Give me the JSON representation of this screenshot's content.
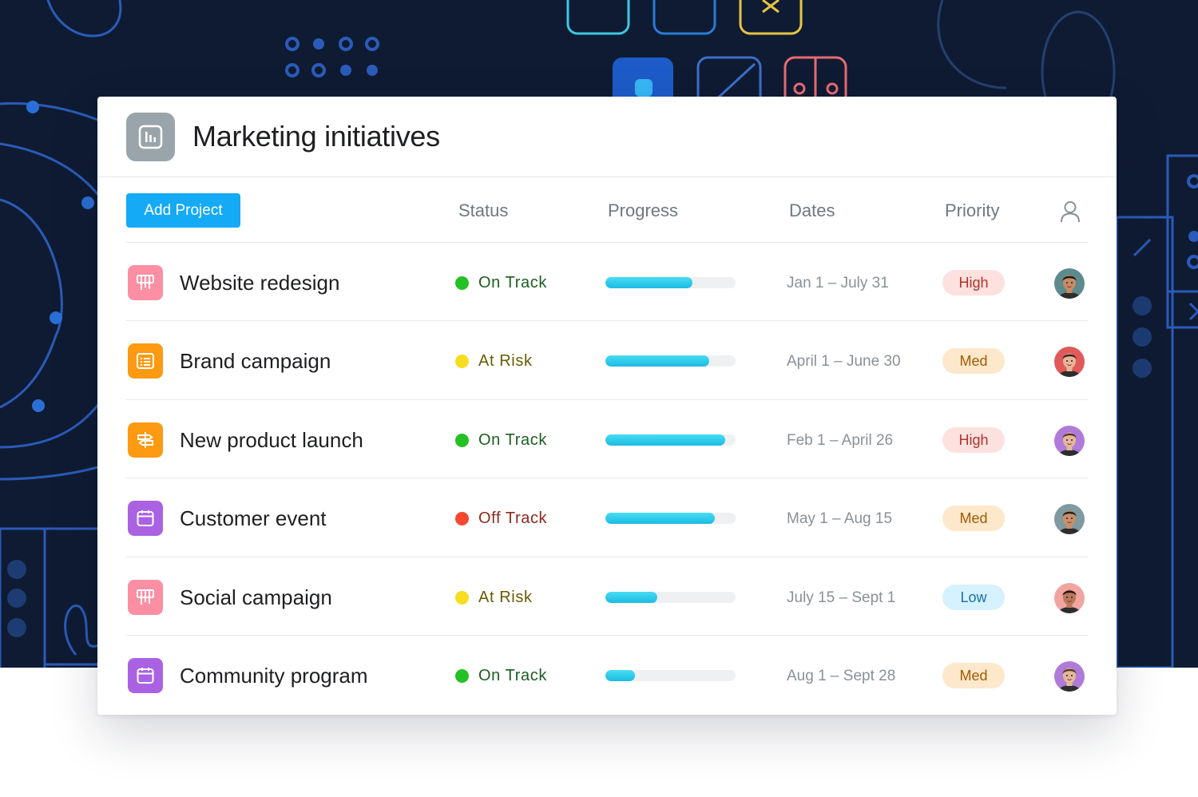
{
  "header": {
    "title": "Marketing initiatives",
    "icon": "bar-chart-icon"
  },
  "toolbar": {
    "add_project_label": "Add Project"
  },
  "columns": {
    "status": "Status",
    "progress": "Progress",
    "dates": "Dates",
    "priority": "Priority",
    "assignee_icon": "person-icon"
  },
  "colors": {
    "primary_button": "#14aaf5",
    "on_track": "#23c123",
    "at_risk": "#f7dd1f",
    "off_track": "#f44831",
    "progress_fill": "#2ec9ea"
  },
  "projects": [
    {
      "name": "Website redesign",
      "icon": "board-icon",
      "icon_color": "#fc8fa3",
      "status": "On Track",
      "status_color": "#23c123",
      "status_text_color": "#1b5e20",
      "progress": 0.67,
      "dates": "Jan 1 – July 31",
      "priority": "High",
      "priority_bg": "#fde1df",
      "priority_fg": "#b2332a",
      "avatar_skin": "#c78a62",
      "avatar_hair": "#1a1a1a",
      "avatar_bg": "#5d8a8c"
    },
    {
      "name": "Brand campaign",
      "icon": "list-icon",
      "icon_color": "#fd9a12",
      "status": "At Risk",
      "status_color": "#f7dd1f",
      "status_text_color": "#6b5a00",
      "progress": 0.8,
      "dates": "April 1 – June 30",
      "priority": "Med",
      "priority_bg": "#fde8cc",
      "priority_fg": "#a35a00",
      "avatar_skin": "#e8b398",
      "avatar_hair": "#3a2418",
      "avatar_bg": "#e05a5a"
    },
    {
      "name": "New product launch",
      "icon": "signpost-icon",
      "icon_color": "#fd9a12",
      "status": "On Track",
      "status_color": "#23c123",
      "status_text_color": "#1b5e20",
      "progress": 0.92,
      "dates": "Feb 1 – April 26",
      "priority": "High",
      "priority_bg": "#fde1df",
      "priority_fg": "#b2332a",
      "avatar_skin": "#e3b79c",
      "avatar_hair": "#5b3a22",
      "avatar_bg": "#b07ad8"
    },
    {
      "name": "Customer event",
      "icon": "calendar-icon",
      "icon_color": "#aa62e3",
      "status": "Off Track",
      "status_color": "#f44831",
      "status_text_color": "#8e2a1d",
      "progress": 0.84,
      "dates": "May 1 – Aug 15",
      "priority": "Med",
      "priority_bg": "#fde8cc",
      "priority_fg": "#a35a00",
      "avatar_skin": "#c98e6b",
      "avatar_hair": "#2b2016",
      "avatar_bg": "#7f9aa0"
    },
    {
      "name": "Social campaign",
      "icon": "board-icon",
      "icon_color": "#fc8fa3",
      "status": "At Risk",
      "status_color": "#f7dd1f",
      "status_text_color": "#6b5a00",
      "progress": 0.4,
      "dates": "July 15 – Sept 1",
      "priority": "Low",
      "priority_bg": "#d6f1ff",
      "priority_fg": "#1472a8",
      "avatar_skin": "#b9785a",
      "avatar_hair": "#241612",
      "avatar_bg": "#f0a5a0"
    },
    {
      "name": "Community program",
      "icon": "calendar-icon",
      "icon_color": "#aa62e3",
      "status": "On Track",
      "status_color": "#23c123",
      "status_text_color": "#1b5e20",
      "progress": 0.23,
      "dates": "Aug 1 – Sept 28",
      "priority": "Med",
      "priority_bg": "#fde8cc",
      "priority_fg": "#a35a00",
      "avatar_skin": "#e3b79c",
      "avatar_hair": "#5b3a22",
      "avatar_bg": "#b07ad8"
    }
  ]
}
